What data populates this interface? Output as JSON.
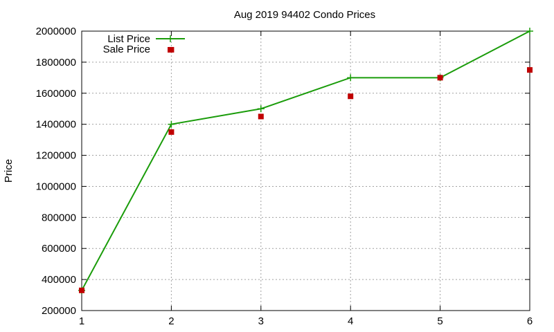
{
  "chart_data": {
    "type": "line",
    "title": "Aug 2019 94402 Condo Prices",
    "xlabel": "",
    "ylabel": "Price",
    "x": [
      1,
      2,
      3,
      4,
      5,
      6
    ],
    "xlim": [
      1,
      6
    ],
    "ylim": [
      200000,
      2000000
    ],
    "xticks": [
      "1",
      "2",
      "3",
      "4",
      "5",
      "6"
    ],
    "yticks": [
      "200000",
      "400000",
      "600000",
      "800000",
      "1000000",
      "1200000",
      "1400000",
      "1600000",
      "1800000",
      "2000000"
    ],
    "grid": true,
    "legend_position": "top-left",
    "series": [
      {
        "name": "List Price",
        "kind": "line-with-markers",
        "marker": "plus",
        "color": "#1a9c0a",
        "values": [
          330000,
          1400000,
          1500000,
          1700000,
          1700000,
          2000000
        ]
      },
      {
        "name": "Sale Price",
        "kind": "points",
        "marker": "square",
        "color": "#c00000",
        "values": [
          330000,
          1350000,
          1450000,
          1580000,
          1700000,
          1750000
        ]
      },
      {
        "name": "",
        "kind": "points",
        "marker": "square",
        "color": "#c00000",
        "x": [
          2
        ],
        "values": [
          1880000
        ]
      }
    ]
  }
}
